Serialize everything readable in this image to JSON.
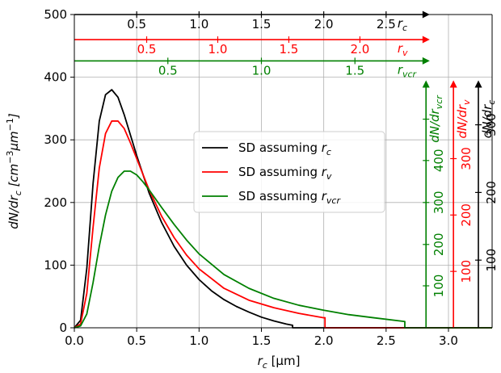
{
  "chart_data": {
    "type": "line",
    "xlabel": {
      "main": "r",
      "sub": "c",
      "unit": " [μm]"
    },
    "ylabel": {
      "main": "dN/dr",
      "sub": "c",
      "unit_pre": " [cm",
      "exp1": "−3",
      "unit_mid": "μm",
      "exp2": "−1",
      "unit_post": "]"
    },
    "xlim": [
      0,
      3.35
    ],
    "ylim": [
      0,
      500
    ],
    "x_ticks": [
      0.0,
      0.5,
      1.0,
      1.5,
      2.0,
      2.5,
      3.0
    ],
    "x_tick_labels": [
      "0.0",
      "0.5",
      "1.0",
      "1.5",
      "2.0",
      "2.5",
      "3.0"
    ],
    "y_ticks": [
      0,
      100,
      200,
      300,
      400,
      500
    ],
    "y_tick_labels": [
      "0",
      "100",
      "200",
      "300",
      "400",
      "500"
    ],
    "grid": true,
    "legend_position": "center",
    "colors": {
      "rc": "#000000",
      "rv": "#ff0000",
      "rvcr": "#008000"
    },
    "series": [
      {
        "name": "SD assuming rc",
        "label": {
          "pre": "SD assuming ",
          "main": "r",
          "sub": "c"
        },
        "color": "#000000",
        "x": [
          0.0,
          0.05,
          0.1,
          0.15,
          0.2,
          0.25,
          0.3,
          0.35,
          0.4,
          0.5,
          0.6,
          0.7,
          0.8,
          0.9,
          1.0,
          1.1,
          1.2,
          1.3,
          1.4,
          1.5,
          1.6,
          1.7,
          1.75,
          1.75,
          3.35
        ],
        "values": [
          0,
          12,
          95,
          230,
          330,
          372,
          380,
          368,
          340,
          275,
          215,
          168,
          130,
          100,
          77,
          59,
          45,
          34,
          25,
          17,
          11,
          6,
          4,
          0,
          0
        ]
      },
      {
        "name": "SD assuming rv",
        "label": {
          "pre": "SD assuming ",
          "main": "r",
          "sub": "v"
        },
        "color": "#ff0000",
        "x": [
          0.0,
          0.05,
          0.1,
          0.15,
          0.2,
          0.25,
          0.3,
          0.35,
          0.4,
          0.45,
          0.5,
          0.6,
          0.7,
          0.8,
          0.9,
          1.0,
          1.2,
          1.4,
          1.6,
          1.8,
          2.0,
          2.01,
          2.01,
          3.35
        ],
        "values": [
          0,
          6,
          55,
          160,
          255,
          310,
          330,
          330,
          318,
          295,
          270,
          220,
          178,
          144,
          116,
          94,
          63,
          44,
          32,
          23,
          16,
          16,
          0,
          0
        ]
      },
      {
        "name": "SD assuming rvcr",
        "label": {
          "pre": "SD assuming ",
          "main": "r",
          "sub": "vcr"
        },
        "color": "#008000",
        "x": [
          0.0,
          0.05,
          0.1,
          0.15,
          0.2,
          0.25,
          0.3,
          0.35,
          0.4,
          0.45,
          0.5,
          0.55,
          0.6,
          0.7,
          0.8,
          0.9,
          1.0,
          1.2,
          1.4,
          1.6,
          1.8,
          2.0,
          2.2,
          2.4,
          2.65,
          2.65,
          3.35
        ],
        "values": [
          0,
          3,
          22,
          72,
          130,
          180,
          218,
          240,
          250,
          250,
          244,
          233,
          220,
          192,
          165,
          140,
          118,
          85,
          63,
          47,
          36,
          28,
          21,
          16,
          10,
          0,
          0
        ]
      }
    ],
    "top_axes": [
      {
        "name": "rc",
        "label": {
          "main": "r",
          "sub": "c"
        },
        "color": "#000000",
        "level": 500,
        "span": [
          0,
          2.85
        ],
        "ticks": [
          0.5,
          1.0,
          1.5,
          2.0,
          2.5
        ],
        "tick_labels": [
          "0.5",
          "1.0",
          "1.5",
          "2.0",
          "2.5"
        ]
      },
      {
        "name": "rv",
        "label": {
          "main": "r",
          "sub": "v"
        },
        "color": "#ff0000",
        "level": 460,
        "span": [
          0,
          2.85
        ],
        "ticks": [
          0.58,
          1.15,
          1.72,
          2.29
        ],
        "tick_labels": [
          "0.5",
          "1.0",
          "1.5",
          "2.0"
        ]
      },
      {
        "name": "rvcr",
        "label": {
          "main": "r",
          "sub": "vcr"
        },
        "color": "#008000",
        "level": 426,
        "span": [
          0,
          2.85
        ],
        "ticks": [
          0.75,
          1.5,
          2.25
        ],
        "tick_labels": [
          "0.5",
          "1.0",
          "1.5"
        ]
      }
    ],
    "right_axes": [
      {
        "name": "rvcr",
        "label": {
          "main": "dN/dr",
          "sub": "vcr"
        },
        "color": "#008000",
        "x": 2.82,
        "span": [
          0,
          395
        ],
        "ticks": [
          67,
          133,
          200,
          267,
          333
        ],
        "tick_labels": [
          "100",
          "200",
          "300",
          "400"
        ],
        "tick_labels_visible_only": [
          100,
          200,
          300,
          400
        ]
      },
      {
        "name": "rv",
        "label": {
          "main": "dN/dr",
          "sub": "v"
        },
        "color": "#ff0000",
        "x": 3.04,
        "span": [
          0,
          395
        ],
        "ticks": [
          90,
          180,
          270
        ],
        "tick_labels": [
          "100",
          "200",
          "300"
        ]
      },
      {
        "name": "rc",
        "label": {
          "main": "dN/dr",
          "sub": "c"
        },
        "color": "#000000",
        "x": 3.24,
        "span": [
          0,
          395
        ],
        "ticks": [
          108,
          216,
          324
        ],
        "tick_labels": [
          "100",
          "200",
          "300"
        ]
      }
    ]
  }
}
